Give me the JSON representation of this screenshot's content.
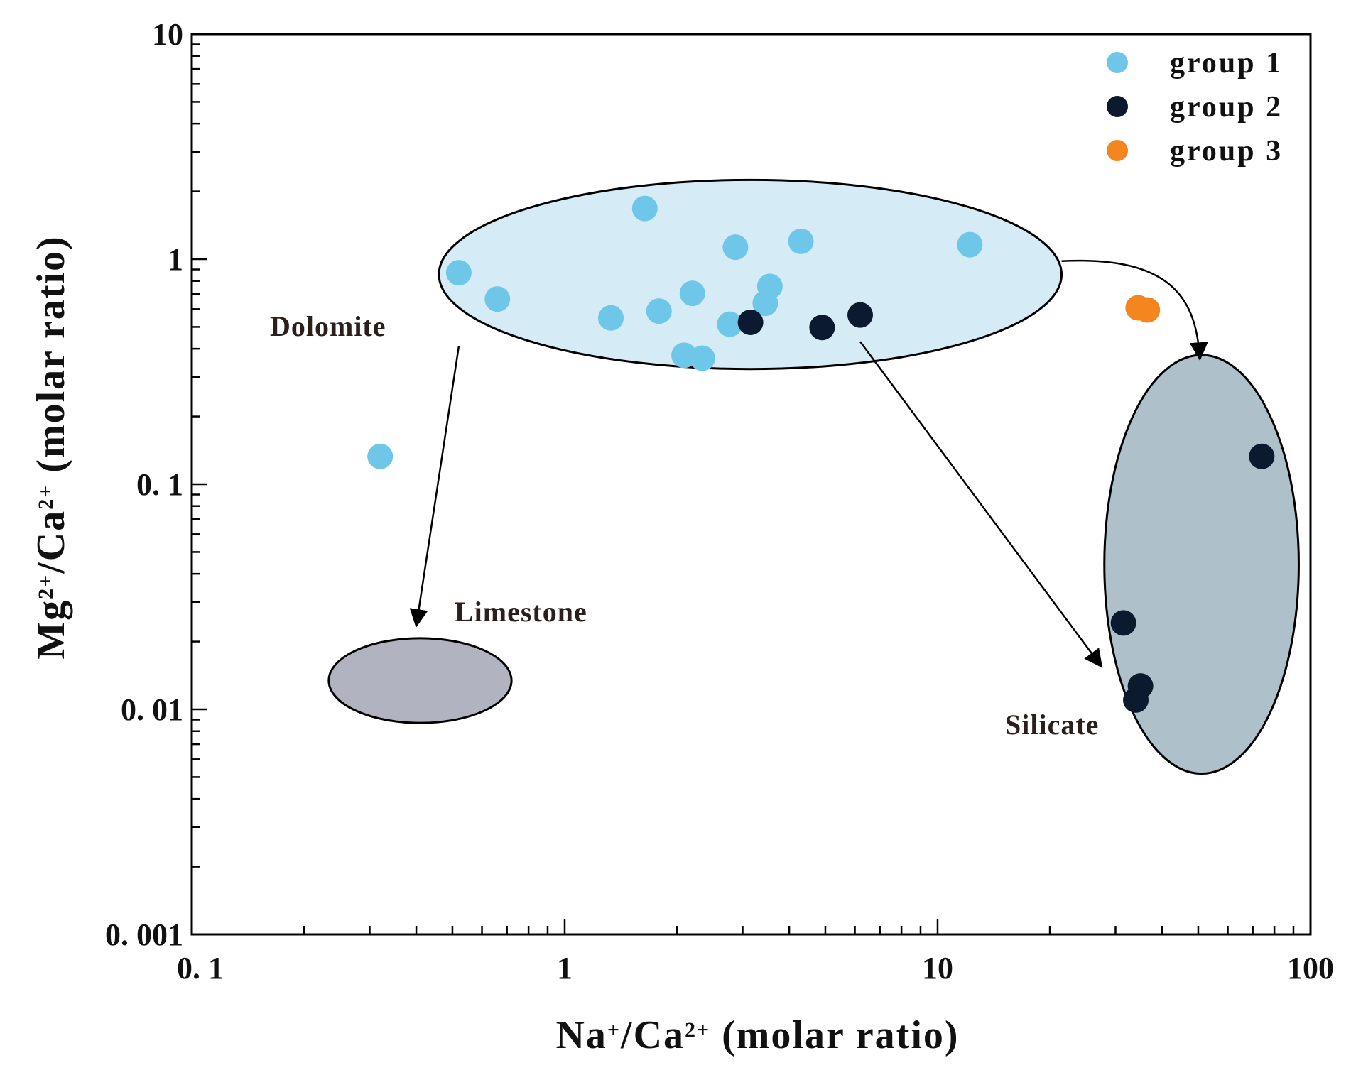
{
  "chart_data": {
    "type": "scatter",
    "xscale": "log",
    "yscale": "log",
    "xlim": [
      0.1,
      100
    ],
    "ylim": [
      0.001,
      10
    ],
    "xticks": [
      0.1,
      1,
      10,
      100
    ],
    "yticks": [
      0.001,
      0.01,
      0.1,
      1,
      10
    ],
    "xtick_labels": [
      "0. 1",
      "1",
      "10",
      "100"
    ],
    "ytick_labels": [
      "0. 001",
      "0. 01",
      "0. 1",
      "1",
      "10"
    ],
    "xlabel": {
      "prefix": "Na",
      "sup1": "+",
      "mid": "/Ca",
      "sup2": "2+",
      "suffix": " (molar ratio)"
    },
    "ylabel": {
      "prefix": "Mg",
      "sup1": "2+",
      "mid": "/Ca",
      "sup2": "2+",
      "suffix": " (molar ratio)"
    },
    "legend_position": "top-right",
    "series": [
      {
        "name": "group 1",
        "color": "#6ec6e8",
        "points": [
          {
            "x": 0.32,
            "y": 0.133
          },
          {
            "x": 0.52,
            "y": 0.87
          },
          {
            "x": 0.66,
            "y": 0.665
          },
          {
            "x": 1.33,
            "y": 0.548
          },
          {
            "x": 1.64,
            "y": 1.68
          },
          {
            "x": 1.79,
            "y": 0.588
          },
          {
            "x": 2.09,
            "y": 0.374
          },
          {
            "x": 2.2,
            "y": 0.705
          },
          {
            "x": 2.34,
            "y": 0.363
          },
          {
            "x": 2.77,
            "y": 0.514
          },
          {
            "x": 2.87,
            "y": 1.13
          },
          {
            "x": 3.45,
            "y": 0.637
          },
          {
            "x": 3.55,
            "y": 0.757
          },
          {
            "x": 4.3,
            "y": 1.2
          },
          {
            "x": 12.2,
            "y": 1.16
          }
        ]
      },
      {
        "name": "group 2",
        "color": "#0b1a2e",
        "points": [
          {
            "x": 3.15,
            "y": 0.524
          },
          {
            "x": 4.9,
            "y": 0.497
          },
          {
            "x": 6.2,
            "y": 0.565
          },
          {
            "x": 31.5,
            "y": 0.0242
          },
          {
            "x": 35.0,
            "y": 0.0127
          },
          {
            "x": 34.0,
            "y": 0.011
          },
          {
            "x": 74.0,
            "y": 0.133
          }
        ]
      },
      {
        "name": "group 3",
        "color": "#f5861f",
        "points": [
          {
            "x": 34.5,
            "y": 0.608
          },
          {
            "x": 36.5,
            "y": 0.595
          }
        ]
      }
    ],
    "regions": [
      {
        "name": "Dolomite",
        "label": "Dolomite",
        "fill": "#d5ecf6",
        "x_range": [
          0.46,
          21.5
        ],
        "y_range": [
          0.325,
          2.25
        ]
      },
      {
        "name": "Limestone",
        "label": "Limestone",
        "fill": "#b1b3c1",
        "x_range": [
          0.233,
          0.72
        ],
        "y_range": [
          0.0087,
          0.0207
        ]
      },
      {
        "name": "Silicate",
        "label": "Silicate",
        "fill": "#aec1ca",
        "x_range": [
          28.0,
          93.0
        ],
        "y_range": [
          0.00518,
          0.375
        ]
      }
    ],
    "arrows": [
      {
        "from": [
          0.52,
          0.41
        ],
        "to": [
          0.4,
          0.0235
        ]
      },
      {
        "from": [
          21.5,
          0.98
        ],
        "to": [
          50.5,
          0.36
        ]
      },
      {
        "from": [
          6.2,
          0.43
        ],
        "to": [
          27.5,
          0.0155
        ]
      }
    ]
  }
}
